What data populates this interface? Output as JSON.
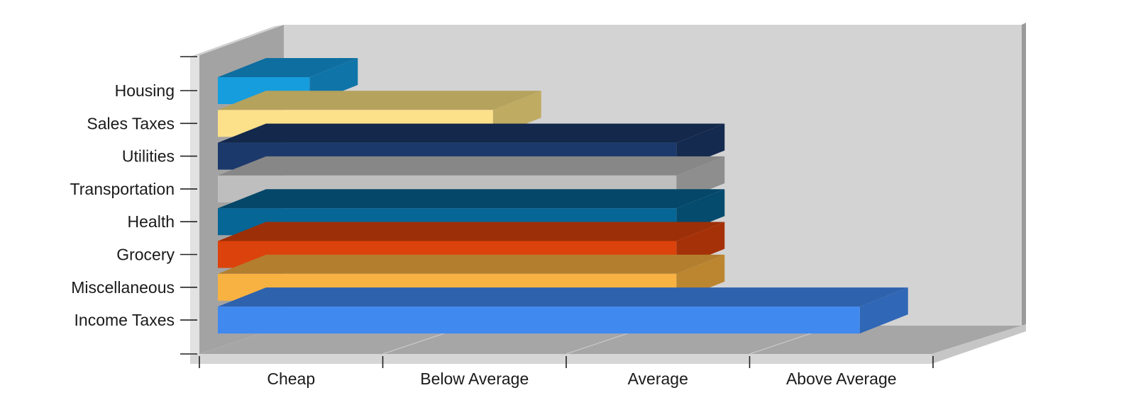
{
  "chart_data": {
    "type": "bar",
    "orientation": "horizontal",
    "style": "3d",
    "title": "",
    "xlabel": "",
    "ylabel": "",
    "x_ticks": [
      "Cheap",
      "Below Average",
      "Average",
      "Above Average"
    ],
    "xlim": [
      0,
      4
    ],
    "legend": "none",
    "grid": true,
    "bars": [
      {
        "category": "Housing",
        "value": 0.5,
        "color": "#169ddd",
        "side_color": "#0f74a8"
      },
      {
        "category": "Sales Taxes",
        "value": 1.5,
        "color": "#fde08a",
        "side_color": "#bfab62"
      },
      {
        "category": "Utilities",
        "value": 2.5,
        "color": "#1b396b",
        "side_color": "#142a4f"
      },
      {
        "category": "Transportation",
        "value": 2.5,
        "color": "#bebebe",
        "side_color": "#8e8e8e"
      },
      {
        "category": "Health",
        "value": 2.5,
        "color": "#066695",
        "side_color": "#044b6e"
      },
      {
        "category": "Grocery",
        "value": 2.5,
        "color": "#dc420b",
        "side_color": "#a53108"
      },
      {
        "category": "Miscellaneous",
        "value": 2.5,
        "color": "#f8b241",
        "side_color": "#bc8631"
      },
      {
        "category": "Income Taxes",
        "value": 3.5,
        "color": "#4089ef",
        "side_color": "#3067b6"
      }
    ],
    "wall_color": "#d3d3d4",
    "floor_color": "#a6a6a6"
  }
}
